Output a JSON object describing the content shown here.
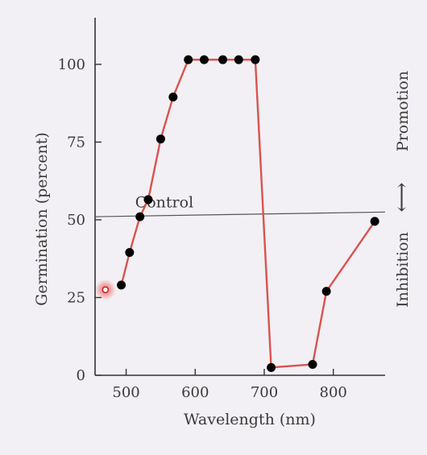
{
  "chart_data": {
    "type": "line",
    "xlabel": "Wavelength (nm)",
    "ylabel": "Germination (percent)",
    "xlim": [
      455,
      875
    ],
    "ylim": [
      0,
      115
    ],
    "x_ticks": [
      500,
      600,
      700,
      800
    ],
    "y_ticks": [
      0,
      25,
      50,
      75,
      100
    ],
    "grid": false,
    "control": {
      "label": "Control",
      "y_start": 51,
      "y_end": 52.5
    },
    "right_annotation": {
      "lower": "Inhibition",
      "arrow": "⟷",
      "upper": "Promotion"
    },
    "colors": {
      "line": "#d9534f",
      "marker": "#000000",
      "axis": "#333333",
      "control": "#555555",
      "highlight": "#e84a4a"
    },
    "highlight_point": {
      "x": 470,
      "y": 27.5
    },
    "series": [
      {
        "x": [
          493,
          505,
          520,
          532,
          550,
          568,
          590,
          613,
          640,
          663,
          687,
          710,
          770,
          790,
          860
        ],
        "y": [
          29,
          39.5,
          51,
          56.5,
          76,
          89.5,
          101.5,
          101.5,
          101.5,
          101.5,
          101.5,
          2.5,
          3.5,
          27,
          49.5
        ]
      }
    ]
  }
}
